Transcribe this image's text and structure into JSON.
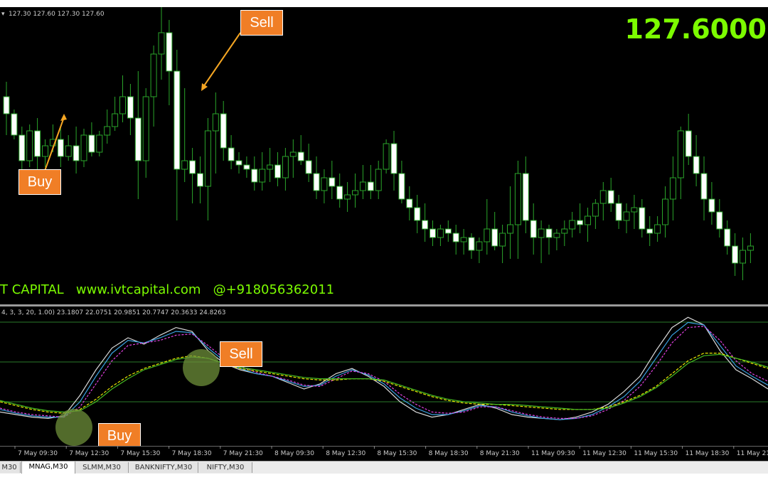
{
  "main": {
    "ohlc_header": "127.30 127.60 127.30 127.60",
    "price_label": "127.6000",
    "watermark": "T CAPITAL   www.ivtcapital.com   @+918056362011",
    "callout_buy": "Buy",
    "callout_sell": "Sell"
  },
  "indicator": {
    "header": "4, 3, 3, 20, 1.00) 23.1807 22.0751 20.9851 20.7747 20.3633 24.8263",
    "callout_buy": "Buy",
    "callout_sell": "Sell"
  },
  "time_axis": {
    "labels": [
      "7 May 09:30",
      "7 May 12:30",
      "7 May 15:30",
      "7 May 18:30",
      "7 May 21:30",
      "8 May 09:30",
      "8 May 12:30",
      "8 May 15:30",
      "8 May 18:30",
      "8 May 21:30",
      "11 May 09:30",
      "11 May 12:30",
      "11 May 15:30",
      "11 May 18:30",
      "11 May 21:30"
    ]
  },
  "tabs": [
    {
      "label": "M30",
      "active": false
    },
    {
      "label": "MNAG,M30",
      "active": true
    },
    {
      "label": "SLMM,M30",
      "active": false
    },
    {
      "label": "BANKNIFTY,M30",
      "active": false
    },
    {
      "label": "NIFTY,M30",
      "active": false
    }
  ],
  "colors": {
    "background": "#000000",
    "bull_candle": "#000000",
    "bear_candle": "#ffffff",
    "wick": "#2aa52a",
    "price_label": "#7cfc00",
    "watermark": "#7cfc00",
    "callout": "#f07e26",
    "arrow": "#f5a623",
    "stoch_fast": "#d8d8d8",
    "stoch_signal": "#e040e0",
    "stoch_blue": "#3aa0e0",
    "ma_yellow": "#e8e800",
    "ma_green": "#44bb22",
    "level_lines": "#2a7a2a",
    "highlight_circle": "#6e8f3a"
  },
  "chart_data": [
    {
      "type": "candlestick",
      "candles": [
        [
          88,
          95,
          70,
          80
        ],
        [
          80,
          82,
          68,
          70
        ],
        [
          70,
          74,
          52,
          58
        ],
        [
          58,
          75,
          55,
          72
        ],
        [
          72,
          78,
          50,
          60
        ],
        [
          60,
          68,
          55,
          65
        ],
        [
          65,
          75,
          62,
          68
        ],
        [
          68,
          74,
          55,
          60
        ],
        [
          60,
          70,
          58,
          65
        ],
        [
          65,
          74,
          52,
          58
        ],
        [
          58,
          73,
          55,
          70
        ],
        [
          70,
          76,
          60,
          62
        ],
        [
          62,
          72,
          60,
          70
        ],
        [
          70,
          82,
          66,
          74
        ],
        [
          74,
          88,
          72,
          80
        ],
        [
          80,
          98,
          76,
          88
        ],
        [
          88,
          94,
          70,
          78
        ],
        [
          78,
          100,
          40,
          58
        ],
        [
          58,
          92,
          50,
          88
        ],
        [
          88,
          112,
          74,
          108
        ],
        [
          108,
          130,
          96,
          118
        ],
        [
          118,
          124,
          84,
          100
        ],
        [
          100,
          110,
          30,
          54
        ],
        [
          54,
          92,
          48,
          58
        ],
        [
          58,
          64,
          38,
          52
        ],
        [
          52,
          60,
          38,
          46
        ],
        [
          46,
          78,
          30,
          72
        ],
        [
          72,
          90,
          52,
          80
        ],
        [
          80,
          86,
          58,
          64
        ],
        [
          64,
          70,
          54,
          58
        ],
        [
          58,
          62,
          52,
          56
        ],
        [
          56,
          60,
          50,
          54
        ],
        [
          54,
          60,
          44,
          48
        ],
        [
          48,
          62,
          44,
          54
        ],
        [
          54,
          64,
          48,
          56
        ],
        [
          56,
          62,
          46,
          50
        ],
        [
          50,
          64,
          44,
          60
        ],
        [
          60,
          68,
          50,
          62
        ],
        [
          62,
          70,
          56,
          58
        ],
        [
          58,
          66,
          48,
          52
        ],
        [
          52,
          60,
          40,
          44
        ],
        [
          44,
          54,
          38,
          50
        ],
        [
          50,
          58,
          40,
          46
        ],
        [
          46,
          52,
          36,
          40
        ],
        [
          40,
          48,
          34,
          42
        ],
        [
          42,
          52,
          36,
          44
        ],
        [
          44,
          56,
          40,
          48
        ],
        [
          48,
          56,
          40,
          44
        ],
        [
          44,
          58,
          40,
          54
        ],
        [
          54,
          68,
          52,
          66
        ],
        [
          66,
          72,
          44,
          52
        ],
        [
          52,
          58,
          38,
          40
        ],
        [
          40,
          46,
          30,
          36
        ],
        [
          36,
          42,
          24,
          30
        ],
        [
          30,
          38,
          20,
          26
        ],
        [
          26,
          30,
          18,
          22
        ],
        [
          22,
          28,
          18,
          26
        ],
        [
          26,
          30,
          20,
          24
        ],
        [
          24,
          28,
          14,
          20
        ],
        [
          20,
          26,
          14,
          22
        ],
        [
          22,
          24,
          12,
          16
        ],
        [
          16,
          22,
          10,
          20
        ],
        [
          20,
          40,
          14,
          26
        ],
        [
          26,
          34,
          16,
          18
        ],
        [
          18,
          28,
          10,
          24
        ],
        [
          24,
          46,
          12,
          28
        ],
        [
          28,
          58,
          12,
          52
        ],
        [
          52,
          60,
          24,
          30
        ],
        [
          30,
          38,
          14,
          22
        ],
        [
          22,
          30,
          10,
          26
        ],
        [
          26,
          28,
          14,
          22
        ],
        [
          22,
          26,
          16,
          24
        ],
        [
          24,
          30,
          18,
          26
        ],
        [
          26,
          34,
          22,
          30
        ],
        [
          30,
          38,
          24,
          28
        ],
        [
          28,
          36,
          20,
          32
        ],
        [
          32,
          40,
          26,
          38
        ],
        [
          38,
          48,
          30,
          44
        ],
        [
          44,
          50,
          34,
          38
        ],
        [
          38,
          42,
          26,
          30
        ],
        [
          30,
          38,
          24,
          34
        ],
        [
          34,
          42,
          26,
          36
        ],
        [
          36,
          40,
          22,
          26
        ],
        [
          26,
          32,
          18,
          24
        ],
        [
          24,
          32,
          20,
          28
        ],
        [
          28,
          46,
          22,
          40
        ],
        [
          40,
          60,
          30,
          50
        ],
        [
          50,
          74,
          40,
          72
        ],
        [
          72,
          80,
          56,
          60
        ],
        [
          60,
          70,
          46,
          52
        ],
        [
          52,
          60,
          30,
          40
        ],
        [
          40,
          48,
          28,
          34
        ],
        [
          34,
          40,
          22,
          26
        ],
        [
          26,
          30,
          14,
          18
        ],
        [
          18,
          24,
          4,
          10
        ],
        [
          10,
          22,
          2,
          16
        ],
        [
          16,
          24,
          10,
          18
        ]
      ]
    },
    {
      "type": "line",
      "ylim": [
        0,
        100
      ],
      "series": [
        {
          "values": [
            22,
            20,
            18,
            17,
            19,
            35,
            55,
            72,
            80,
            75,
            82,
            88,
            85,
            70,
            60,
            55,
            52,
            50,
            45,
            40,
            44,
            52,
            56,
            50,
            42,
            30,
            22,
            18,
            20,
            24,
            28,
            25,
            20,
            18,
            17,
            16,
            18,
            22,
            28,
            38,
            50,
            70,
            88,
            96,
            90,
            70,
            55,
            48,
            40
          ]
        },
        {
          "values": [
            24,
            21,
            19,
            18,
            18,
            30,
            50,
            68,
            78,
            76,
            80,
            85,
            84,
            72,
            62,
            56,
            52,
            50,
            46,
            42,
            43,
            50,
            55,
            51,
            44,
            33,
            25,
            20,
            20,
            23,
            27,
            26,
            22,
            19,
            17,
            16,
            17,
            20,
            26,
            34,
            46,
            64,
            82,
            92,
            90,
            74,
            58,
            50,
            43
          ]
        },
        {
          "values": [
            25,
            22,
            20,
            19,
            18,
            26,
            44,
            62,
            74,
            76,
            78,
            82,
            83,
            74,
            64,
            58,
            53,
            50,
            47,
            43,
            42,
            48,
            54,
            52,
            46,
            36,
            28,
            22,
            21,
            22,
            26,
            26,
            23,
            20,
            18,
            17,
            17,
            19,
            24,
            31,
            42,
            58,
            76,
            88,
            89,
            78,
            62,
            52,
            46
          ]
        },
        {
          "values": [
            30,
            27,
            24,
            22,
            21,
            24,
            32,
            42,
            50,
            56,
            60,
            64,
            66,
            64,
            60,
            56,
            54,
            52,
            50,
            48,
            47,
            47,
            48,
            48,
            46,
            42,
            38,
            34,
            31,
            29,
            28,
            28,
            27,
            26,
            25,
            24,
            24,
            24,
            26,
            30,
            35,
            42,
            52,
            62,
            68,
            68,
            64,
            60,
            56
          ]
        },
        {
          "values": [
            31,
            28,
            25,
            23,
            22,
            23,
            30,
            40,
            48,
            55,
            59,
            63,
            65,
            64,
            60,
            57,
            55,
            53,
            51,
            49,
            48,
            48,
            48,
            48,
            47,
            43,
            39,
            35,
            32,
            30,
            29,
            28,
            28,
            27,
            26,
            25,
            24,
            24,
            25,
            29,
            34,
            41,
            50,
            60,
            66,
            67,
            64,
            61,
            57
          ]
        }
      ]
    }
  ]
}
